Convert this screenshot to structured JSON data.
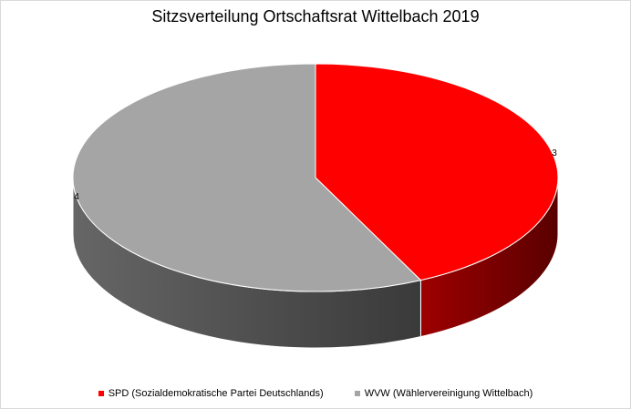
{
  "chart_data": {
    "type": "pie",
    "title": "Sitzsverteilung Ortschaftsrat Wittelbach 2019",
    "categories": [
      "SPD (Sozialdemokratische Partei Deutschlands)",
      "WVW (Wählervereinigung Wittelbach)"
    ],
    "values": [
      3,
      4
    ],
    "data_labels": [
      "3",
      "4"
    ],
    "colors": [
      "#ff0000",
      "#a5a5a5"
    ],
    "legend_position": "bottom",
    "style": "3d"
  }
}
